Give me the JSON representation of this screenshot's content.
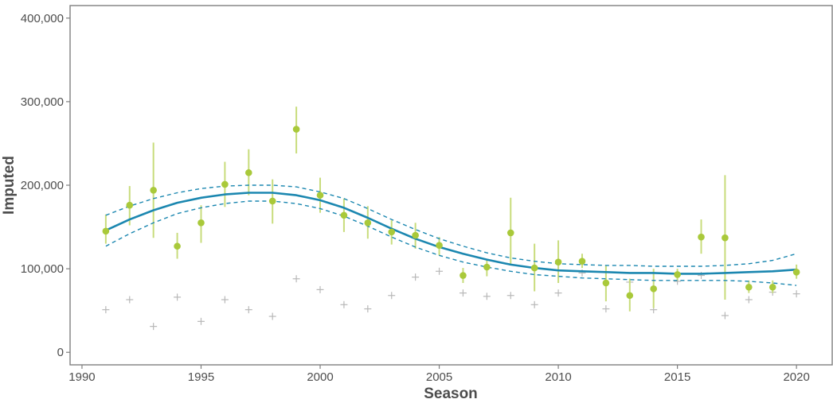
{
  "chart_data": {
    "type": "scatter",
    "title": "",
    "xlabel": "Season",
    "ylabel": "Imputed",
    "xlim": [
      1989.5,
      2021.5
    ],
    "ylim": [
      -15000,
      415000
    ],
    "grid": false,
    "x_ticks": [
      1990,
      1995,
      2000,
      2005,
      2010,
      2015,
      2020
    ],
    "x_tick_labels": [
      "1990",
      "1995",
      "2000",
      "2005",
      "2010",
      "2015",
      "2020"
    ],
    "y_ticks": [
      0,
      100000,
      200000,
      300000,
      400000
    ],
    "y_tick_labels": [
      "0",
      "100,000",
      "200,000",
      "300,000",
      "400,000"
    ],
    "colors": {
      "points": "#a9c93a",
      "error_bars": "#c8dc7c",
      "trend": "#1b87b0",
      "crosses": "#b8b8b8",
      "axis_text": "#4d4d4d",
      "panel_border": "#7f7f7f"
    },
    "series": [
      {
        "type": "points_with_error_bars",
        "points": [
          {
            "x": 1991,
            "y": 145000,
            "lo": 130000,
            "hi": 165000
          },
          {
            "x": 1992,
            "y": 176000,
            "lo": 152000,
            "hi": 199000
          },
          {
            "x": 1993,
            "y": 194000,
            "lo": 137000,
            "hi": 251000
          },
          {
            "x": 1994,
            "y": 127000,
            "lo": 112000,
            "hi": 143000
          },
          {
            "x": 1995,
            "y": 155000,
            "lo": 131000,
            "hi": 176000
          },
          {
            "x": 1996,
            "y": 201000,
            "lo": 174000,
            "hi": 228000
          },
          {
            "x": 1997,
            "y": 215000,
            "lo": 188000,
            "hi": 243000
          },
          {
            "x": 1998,
            "y": 181000,
            "lo": 154000,
            "hi": 207000
          },
          {
            "x": 1999,
            "y": 267000,
            "lo": 238000,
            "hi": 294000
          },
          {
            "x": 2000,
            "y": 188000,
            "lo": 167000,
            "hi": 209000
          },
          {
            "x": 2001,
            "y": 164000,
            "lo": 144000,
            "hi": 184000
          },
          {
            "x": 2002,
            "y": 155000,
            "lo": 136000,
            "hi": 175000
          },
          {
            "x": 2003,
            "y": 144000,
            "lo": 129000,
            "hi": 158000
          },
          {
            "x": 2004,
            "y": 140000,
            "lo": 124000,
            "hi": 155000
          },
          {
            "x": 2005,
            "y": 128000,
            "lo": 116000,
            "hi": 138000
          },
          {
            "x": 2006,
            "y": 92000,
            "lo": 83000,
            "hi": 101000
          },
          {
            "x": 2007,
            "y": 102000,
            "lo": 91000,
            "hi": 112000
          },
          {
            "x": 2008,
            "y": 143000,
            "lo": 105000,
            "hi": 185000
          },
          {
            "x": 2009,
            "y": 101000,
            "lo": 73000,
            "hi": 130000
          },
          {
            "x": 2010,
            "y": 108000,
            "lo": 83000,
            "hi": 134000
          },
          {
            "x": 2011,
            "y": 109000,
            "lo": 101000,
            "hi": 118000
          },
          {
            "x": 2012,
            "y": 83000,
            "lo": 61000,
            "hi": 104000
          },
          {
            "x": 2013,
            "y": 68000,
            "lo": 49000,
            "hi": 88000
          },
          {
            "x": 2014,
            "y": 76000,
            "lo": 53000,
            "hi": 100000
          },
          {
            "x": 2015,
            "y": 93000,
            "lo": 86000,
            "hi": 100000
          },
          {
            "x": 2016,
            "y": 138000,
            "lo": 118000,
            "hi": 159000
          },
          {
            "x": 2017,
            "y": 137000,
            "lo": 63000,
            "hi": 212000
          },
          {
            "x": 2018,
            "y": 78000,
            "lo": 71000,
            "hi": 86000
          },
          {
            "x": 2019,
            "y": 78000,
            "lo": 71000,
            "hi": 86000
          },
          {
            "x": 2020,
            "y": 96000,
            "lo": 88000,
            "hi": 105000
          }
        ]
      },
      {
        "type": "crosses",
        "points": [
          {
            "x": 1991,
            "y": 51000
          },
          {
            "x": 1992,
            "y": 63000
          },
          {
            "x": 1993,
            "y": 31000
          },
          {
            "x": 1994,
            "y": 66000
          },
          {
            "x": 1995,
            "y": 37000
          },
          {
            "x": 1996,
            "y": 63000
          },
          {
            "x": 1997,
            "y": 51000
          },
          {
            "x": 1998,
            "y": 43000
          },
          {
            "x": 1999,
            "y": 88000
          },
          {
            "x": 2000,
            "y": 75000
          },
          {
            "x": 2001,
            "y": 57000
          },
          {
            "x": 2002,
            "y": 52000
          },
          {
            "x": 2003,
            "y": 68000
          },
          {
            "x": 2004,
            "y": 90000
          },
          {
            "x": 2005,
            "y": 97000
          },
          {
            "x": 2006,
            "y": 71000
          },
          {
            "x": 2007,
            "y": 67000
          },
          {
            "x": 2008,
            "y": 68000
          },
          {
            "x": 2009,
            "y": 57000
          },
          {
            "x": 2010,
            "y": 71000
          },
          {
            "x": 2011,
            "y": 95000
          },
          {
            "x": 2012,
            "y": 52000
          },
          {
            "x": 2013,
            "y": 84000
          },
          {
            "x": 2014,
            "y": 51000
          },
          {
            "x": 2015,
            "y": 85000
          },
          {
            "x": 2016,
            "y": 92000
          },
          {
            "x": 2017,
            "y": 44000
          },
          {
            "x": 2018,
            "y": 63000
          },
          {
            "x": 2019,
            "y": 72000
          },
          {
            "x": 2020,
            "y": 70000
          }
        ]
      },
      {
        "type": "trend_line",
        "x": [
          1991,
          1992,
          1993,
          1994,
          1995,
          1996,
          1997,
          1998,
          1999,
          2000,
          2001,
          2002,
          2003,
          2004,
          2005,
          2006,
          2007,
          2008,
          2009,
          2010,
          2011,
          2012,
          2013,
          2014,
          2015,
          2016,
          2017,
          2018,
          2019,
          2020
        ],
        "y": [
          146000,
          159000,
          170000,
          179000,
          185000,
          189000,
          191000,
          191000,
          188000,
          182000,
          173000,
          161000,
          148000,
          136000,
          126000,
          118000,
          111000,
          105000,
          101000,
          98000,
          97000,
          96000,
          95000,
          95000,
          94000,
          94000,
          95000,
          96000,
          97000,
          99000
        ],
        "ci_upper": [
          164000,
          175000,
          184000,
          191000,
          196000,
          199000,
          200000,
          200000,
          198000,
          192000,
          184000,
          172000,
          159000,
          147000,
          136000,
          127000,
          119000,
          113000,
          109000,
          106000,
          105000,
          104000,
          104000,
          103000,
          103000,
          103000,
          104000,
          106000,
          110000,
          118000
        ],
        "ci_lower": [
          127000,
          142000,
          155000,
          166000,
          173000,
          178000,
          181000,
          181000,
          178000,
          172000,
          163000,
          151000,
          138000,
          126000,
          116000,
          108000,
          102000,
          97000,
          93000,
          91000,
          89000,
          88000,
          87000,
          86000,
          86000,
          86000,
          86000,
          85000,
          83000,
          80000
        ]
      }
    ]
  }
}
